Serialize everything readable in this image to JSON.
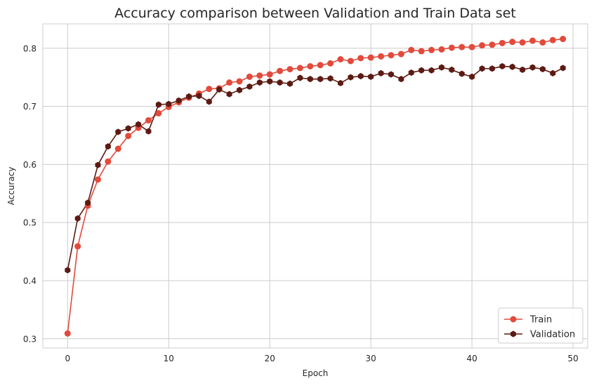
{
  "chart_data": {
    "type": "line",
    "title": "Accuracy comparison between Validation and Train Data set",
    "xlabel": "Epoch",
    "ylabel": "Accuracy",
    "xlim": [
      -2.45,
      51.45
    ],
    "ylim": [
      0.284,
      0.842
    ],
    "xticks": [
      0,
      10,
      20,
      30,
      40,
      50
    ],
    "yticks": [
      0.3,
      0.4,
      0.5,
      0.6,
      0.7,
      0.8
    ],
    "xtick_labels": [
      "0",
      "10",
      "20",
      "30",
      "40",
      "50"
    ],
    "ytick_labels": [
      "0.3",
      "0.4",
      "0.5",
      "0.6",
      "0.7",
      "0.8"
    ],
    "grid": true,
    "legend_position": "lower-right",
    "x": [
      0,
      1,
      2,
      3,
      4,
      5,
      6,
      7,
      8,
      9,
      10,
      11,
      12,
      13,
      14,
      15,
      16,
      17,
      18,
      19,
      20,
      21,
      22,
      23,
      24,
      25,
      26,
      27,
      28,
      29,
      30,
      31,
      32,
      33,
      34,
      35,
      36,
      37,
      38,
      39,
      40,
      41,
      42,
      43,
      44,
      45,
      46,
      47,
      48,
      49
    ],
    "series": [
      {
        "name": "Train",
        "color": "#e24a3b",
        "marker": "circle",
        "values": [
          0.309,
          0.459,
          0.529,
          0.574,
          0.605,
          0.627,
          0.649,
          0.663,
          0.676,
          0.688,
          0.699,
          0.707,
          0.715,
          0.722,
          0.73,
          0.731,
          0.741,
          0.743,
          0.751,
          0.753,
          0.755,
          0.761,
          0.764,
          0.766,
          0.769,
          0.771,
          0.774,
          0.781,
          0.778,
          0.783,
          0.784,
          0.786,
          0.788,
          0.79,
          0.797,
          0.795,
          0.797,
          0.798,
          0.801,
          0.802,
          0.802,
          0.805,
          0.806,
          0.809,
          0.811,
          0.81,
          0.813,
          0.81,
          0.814,
          0.816
        ]
      },
      {
        "name": "Validation",
        "color": "#5c1a12",
        "marker": "hexagon",
        "values": [
          0.418,
          0.507,
          0.534,
          0.599,
          0.631,
          0.656,
          0.662,
          0.669,
          0.657,
          0.703,
          0.704,
          0.71,
          0.717,
          0.718,
          0.708,
          0.729,
          0.721,
          0.728,
          0.734,
          0.741,
          0.743,
          0.741,
          0.739,
          0.749,
          0.747,
          0.747,
          0.748,
          0.74,
          0.75,
          0.752,
          0.751,
          0.757,
          0.755,
          0.747,
          0.758,
          0.762,
          0.762,
          0.767,
          0.763,
          0.756,
          0.751,
          0.765,
          0.765,
          0.769,
          0.768,
          0.763,
          0.767,
          0.764,
          0.757,
          0.766
        ]
      }
    ]
  }
}
